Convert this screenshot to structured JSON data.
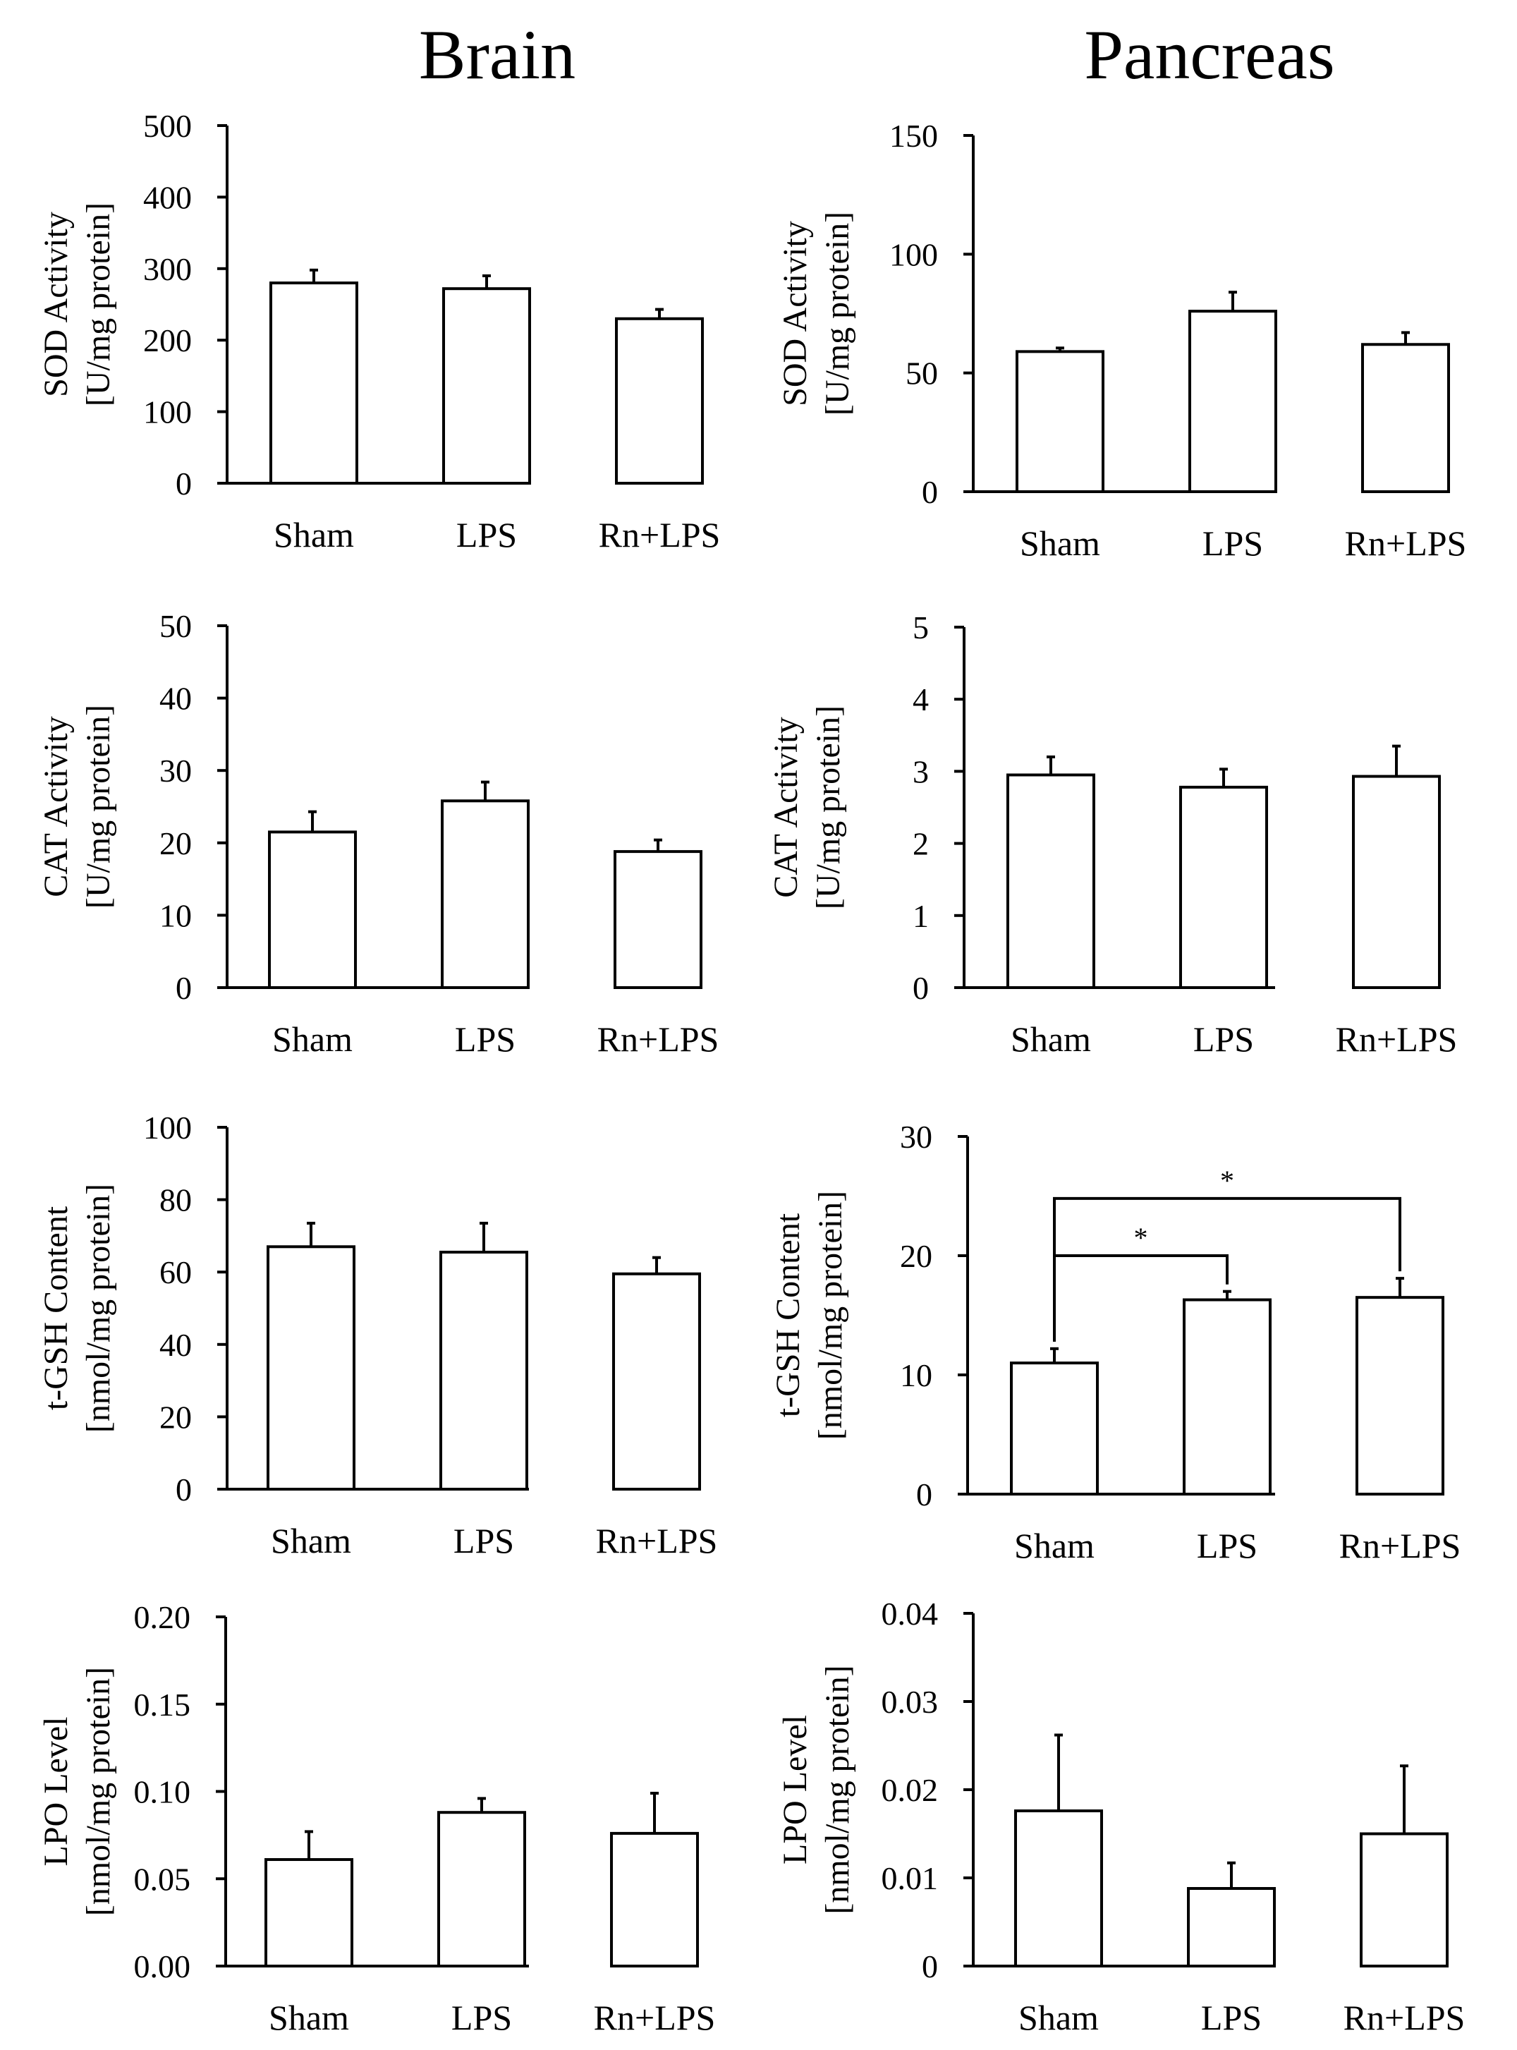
{
  "columns": [
    "Brain",
    "Pancreas"
  ],
  "chart_data": [
    {
      "type": "bar",
      "panel": "Brain SOD",
      "categories": [
        "Sham",
        "LPS",
        "Rn+LPS"
      ],
      "values": [
        280,
        272,
        230
      ],
      "errors": [
        18,
        18,
        13
      ],
      "ylabel": "SOD Activity\n[U/mg protein]",
      "ylim": [
        0,
        500
      ],
      "yticks": [
        "0",
        "100",
        "200",
        "300",
        "400",
        "500"
      ],
      "ytick_values": [
        0,
        100,
        200,
        300,
        400,
        500
      ],
      "annotations": []
    },
    {
      "type": "bar",
      "panel": "Pancreas SOD",
      "categories": [
        "Sham",
        "LPS",
        "Rn+LPS"
      ],
      "values": [
        59,
        76,
        62
      ],
      "errors": [
        1.5,
        8,
        5
      ],
      "ylabel": "SOD Activity\n[U/mg protein]",
      "ylim": [
        0,
        150
      ],
      "yticks": [
        "0",
        "50",
        "100",
        "150"
      ],
      "ytick_values": [
        0,
        50,
        100,
        150
      ],
      "annotations": []
    },
    {
      "type": "bar",
      "panel": "Brain CAT",
      "categories": [
        "Sham",
        "LPS",
        "Rn+LPS"
      ],
      "values": [
        21.5,
        25.8,
        18.8
      ],
      "errors": [
        2.8,
        2.6,
        1.6
      ],
      "ylabel": "CAT Activity\n[U/mg protein]",
      "ylim": [
        0,
        50
      ],
      "yticks": [
        "0",
        "10",
        "20",
        "30",
        "40",
        "50"
      ],
      "ytick_values": [
        0,
        10,
        20,
        30,
        40,
        50
      ],
      "annotations": []
    },
    {
      "type": "bar",
      "panel": "Pancreas CAT",
      "categories": [
        "Sham",
        "LPS",
        "Rn+LPS"
      ],
      "values": [
        2.95,
        2.78,
        2.93
      ],
      "errors": [
        0.25,
        0.25,
        0.42
      ],
      "ylabel": "CAT Activity\n[U/mg protein]",
      "ylim": [
        0,
        5
      ],
      "yticks": [
        "0",
        "1",
        "2",
        "3",
        "4",
        "5"
      ],
      "ytick_values": [
        0,
        1,
        2,
        3,
        4,
        5
      ],
      "annotations": []
    },
    {
      "type": "bar",
      "panel": "Brain t-GSH",
      "categories": [
        "Sham",
        "LPS",
        "Rn+LPS"
      ],
      "values": [
        67,
        65.5,
        59.5
      ],
      "errors": [
        6.5,
        8,
        4.5
      ],
      "ylabel": "t-GSH Content\n[nmol/mg protein]",
      "ylim": [
        0,
        100
      ],
      "yticks": [
        "0",
        "20",
        "40",
        "60",
        "80",
        "100"
      ],
      "ytick_values": [
        0,
        20,
        40,
        60,
        80,
        100
      ],
      "annotations": []
    },
    {
      "type": "bar",
      "panel": "Pancreas t-GSH",
      "categories": [
        "Sham",
        "LPS",
        "Rn+LPS"
      ],
      "values": [
        11,
        16.3,
        16.5
      ],
      "errors": [
        1.2,
        0.7,
        1.6
      ],
      "ylabel": "t-GSH Content\n[nmol/mg protein]",
      "ylim": [
        0,
        30
      ],
      "yticks": [
        "0",
        "10",
        "20",
        "30"
      ],
      "ytick_values": [
        0,
        10,
        20,
        30
      ],
      "annotations": [
        {
          "from": 0,
          "to": 1,
          "level": 20,
          "label": "*"
        },
        {
          "from": 0,
          "to": 2,
          "level": 24.8,
          "label": "*"
        }
      ]
    },
    {
      "type": "bar",
      "panel": "Brain LPO",
      "categories": [
        "Sham",
        "LPS",
        "Rn+LPS"
      ],
      "values": [
        0.061,
        0.088,
        0.076
      ],
      "errors": [
        0.016,
        0.008,
        0.023
      ],
      "ylabel": "LPO Level\n[nmol/mg protein]",
      "ylim": [
        0,
        0.2
      ],
      "yticks": [
        "0.00",
        "0.05",
        "0.10",
        "0.15",
        "0.20"
      ],
      "ytick_values": [
        0,
        0.05,
        0.1,
        0.15,
        0.2
      ],
      "annotations": []
    },
    {
      "type": "bar",
      "panel": "Pancreas LPO",
      "categories": [
        "Sham",
        "LPS",
        "Rn+LPS"
      ],
      "values": [
        0.0176,
        0.0088,
        0.015
      ],
      "errors": [
        0.0086,
        0.0029,
        0.0077
      ],
      "ylabel": "LPO Level\n[nmol/mg protein]",
      "ylim": [
        0,
        0.04
      ],
      "yticks": [
        "0",
        "0.01",
        "0.02",
        "0.03",
        "0.04"
      ],
      "ytick_values": [
        0,
        0.01,
        0.02,
        0.03,
        0.04
      ],
      "annotations": []
    }
  ]
}
